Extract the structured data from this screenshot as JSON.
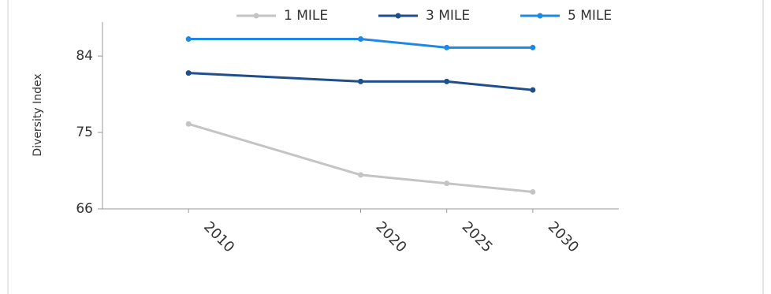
{
  "chart_data": {
    "type": "line",
    "y_label": "Diversity Index",
    "x": [
      2010,
      2020,
      2025,
      2030
    ],
    "xlim": [
      2005,
      2035
    ],
    "xticks": [
      2010,
      2020,
      2025,
      2030
    ],
    "ylim": [
      66,
      88
    ],
    "yticks": [
      66,
      75,
      84
    ],
    "series": [
      {
        "name": "1 MILE",
        "color": "#c4c4c4",
        "values": [
          76,
          70,
          69,
          68
        ]
      },
      {
        "name": "3 MILE",
        "color": "#1f4e8c",
        "values": [
          82,
          81,
          81,
          80
        ]
      },
      {
        "name": "5 MILE",
        "color": "#1e88e5",
        "values": [
          86,
          86,
          85,
          85
        ]
      }
    ]
  }
}
